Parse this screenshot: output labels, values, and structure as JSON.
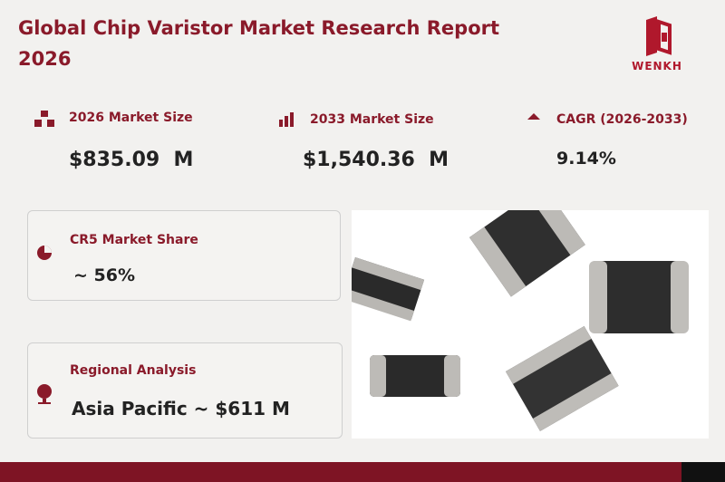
{
  "header": {
    "title": "Global Chip Varistor Market Research Report 2026",
    "logo_text": "WENKH"
  },
  "stats": [
    {
      "label": "2026 Market Size",
      "value": "$835.09  M"
    },
    {
      "label": "2033 Market Size",
      "value": "$1,540.36  M"
    },
    {
      "label": "CAGR (2026-2033)",
      "value": "9.14%"
    }
  ],
  "cards": [
    {
      "label": "CR5 Market Share",
      "value": "~ 56%"
    },
    {
      "label": "Regional Analysis",
      "value": "Asia Pacific ~ $611 M"
    }
  ]
}
